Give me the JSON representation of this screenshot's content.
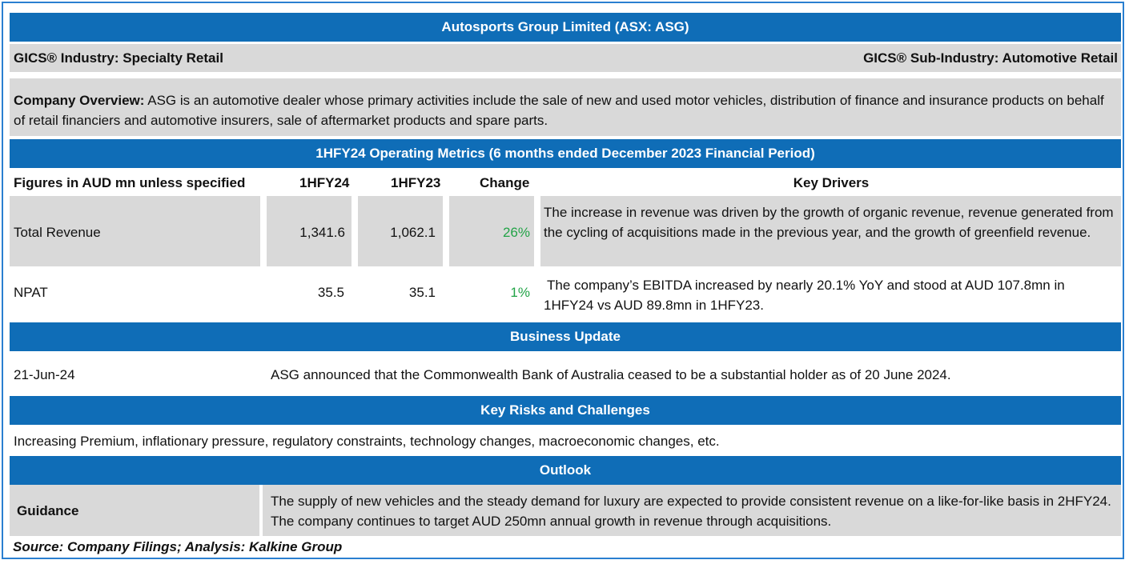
{
  "header": {
    "title": "Autosports Group Limited (ASX: ASG)"
  },
  "gics": {
    "industry": "GICS® Industry: Specialty Retail",
    "sub_industry": "GICS® Sub-Industry: Automotive Retail"
  },
  "overview": {
    "label": "Company Overview:",
    "text": "ASG is an automotive dealer whose primary activities include the sale of new and used motor vehicles, distribution of finance and insurance products on behalf of retail financiers and automotive insurers, sale of aftermarket products and spare parts."
  },
  "metrics": {
    "title": "1HFY24 Operating Metrics (6 months ended December 2023 Financial Period)",
    "columns": [
      "Figures in AUD mn unless specified",
      "1HFY24",
      "1HFY23",
      "Change",
      "Key Drivers"
    ],
    "rows": [
      {
        "label": "Total Revenue",
        "current": "1,341.6",
        "prior": "1,062.1",
        "change": "26%",
        "driver": "The increase in revenue was driven by the growth of organic revenue, revenue generated from the cycling of acquisitions made in the previous year, and the growth of greenfield revenue."
      },
      {
        "label": "NPAT",
        "current": "35.5",
        "prior": "35.1",
        "change": "1%",
        "driver": "The company’s EBITDA increased by nearly 20.1% YoY and stood at AUD 107.8mn in 1HFY24 vs AUD 89.8mn in 1HFY23."
      }
    ],
    "change_color": "#22a347"
  },
  "business_update": {
    "title": "Business Update",
    "date": "21-Jun-24",
    "text": "ASG announced that the Commonwealth Bank of Australia ceased to be a substantial holder as of 20 June 2024."
  },
  "risks": {
    "title": "Key Risks and Challenges",
    "text": "Increasing Premium, inflationary pressure, regulatory constraints, technology changes, macroeconomic changes, etc."
  },
  "outlook": {
    "title": "Outlook",
    "label": "Guidance",
    "text": "The supply of new vehicles and the steady demand for luxury are expected to provide consistent revenue on a like-for-like basis in 2HFY24. The company continues to target AUD 250mn annual growth in revenue through acquisitions."
  },
  "source": "Source: Company Filings; Analysis: Kalkine Group",
  "colors": {
    "band": "#0f6db7",
    "grey": "#d9d9d9",
    "border": "#2a7fd0"
  }
}
